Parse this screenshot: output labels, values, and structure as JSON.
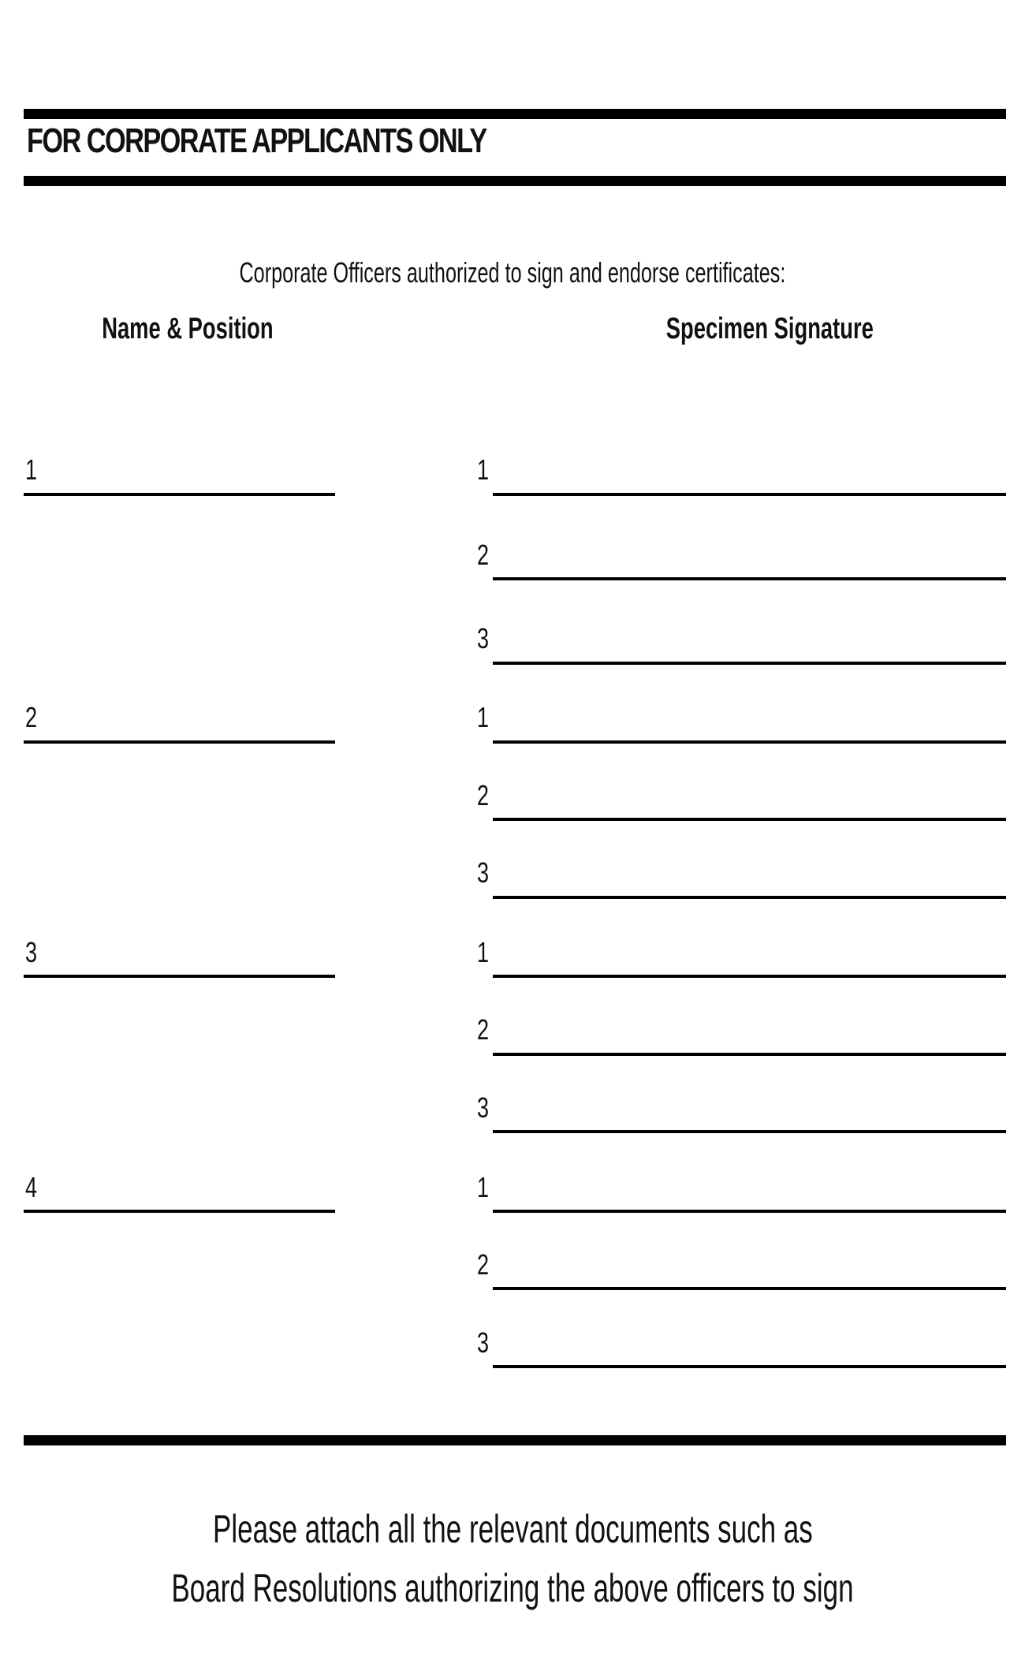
{
  "section": {
    "title": "FOR CORPORATE APPLICANTS ONLY",
    "intro": "Corporate Officers authorized to sign and endorse certificates:"
  },
  "columns": {
    "name_position": "Name & Position",
    "specimen_signature": "Specimen Signature"
  },
  "officers": [
    {
      "number": "1",
      "signatures": [
        "1",
        "2",
        "3"
      ]
    },
    {
      "number": "2",
      "signatures": [
        "1",
        "2",
        "3"
      ]
    },
    {
      "number": "3",
      "signatures": [
        "1",
        "2",
        "3"
      ]
    },
    {
      "number": "4",
      "signatures": [
        "1",
        "2",
        "3"
      ]
    }
  ],
  "footer": {
    "line1": "Please attach all the relevant documents such as",
    "line2": "Board Resolutions authorizing the above officers to sign"
  }
}
